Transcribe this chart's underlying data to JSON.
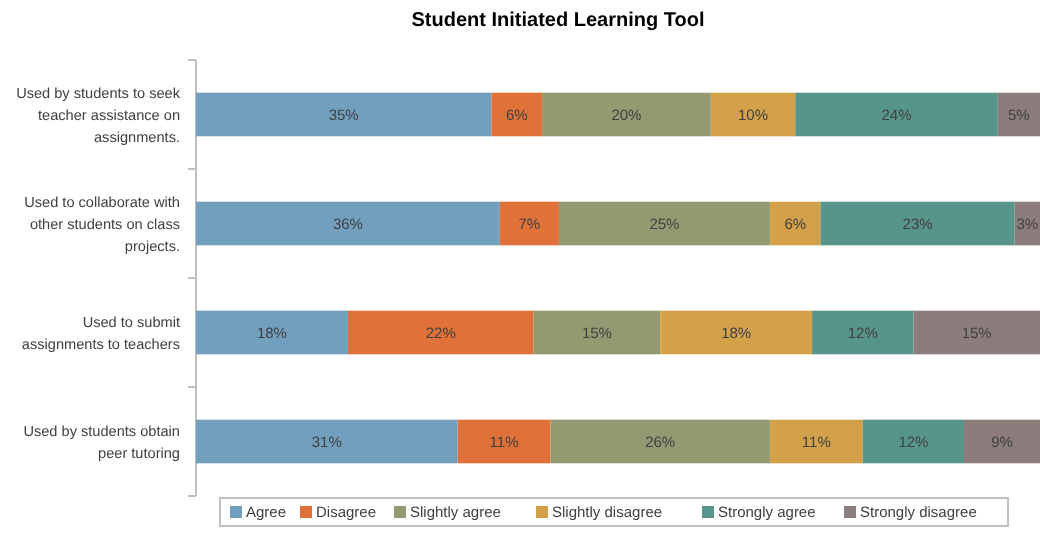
{
  "chart_data": {
    "type": "bar",
    "title": "Student Initiated Learning Tool",
    "orientation": "horizontal",
    "stacked": true,
    "legend": "bottom",
    "categories": [
      "Used by students to seek teacher assistance on assignments.",
      "Used to collaborate with other students on class projects.",
      "Used to submit assignments to teachers",
      "Used by students obtain peer tutoring"
    ],
    "series": [
      {
        "name": "Agree",
        "color": "#729fbd",
        "values": [
          35,
          36,
          18,
          31
        ],
        "value_labels": [
          "35%",
          "36%",
          "18%",
          "31%"
        ]
      },
      {
        "name": "Disagree",
        "color": "#df7139",
        "values": [
          6,
          7,
          22,
          11
        ],
        "value_labels": [
          "6%",
          "7%",
          "22%",
          "11%"
        ]
      },
      {
        "name": "Slightly agree",
        "color": "#939a72",
        "values": [
          20,
          25,
          15,
          26
        ],
        "value_labels": [
          "20%",
          "25%",
          "15%",
          "26%"
        ]
      },
      {
        "name": "Slightly disagree",
        "color": "#d3a14a",
        "values": [
          10,
          6,
          18,
          11
        ],
        "value_labels": [
          "10%",
          "6%",
          "18%",
          "11%"
        ]
      },
      {
        "name": "Strongly agree",
        "color": "#579489",
        "values": [
          24,
          23,
          12,
          12
        ],
        "value_labels": [
          "24%",
          "23%",
          "12%",
          "12%"
        ]
      },
      {
        "name": "Strongly disagree",
        "color": "#8c7c7c",
        "values": [
          5,
          3,
          15,
          9
        ],
        "value_labels": [
          "5%",
          "3%",
          "15%",
          "9%"
        ]
      }
    ]
  }
}
